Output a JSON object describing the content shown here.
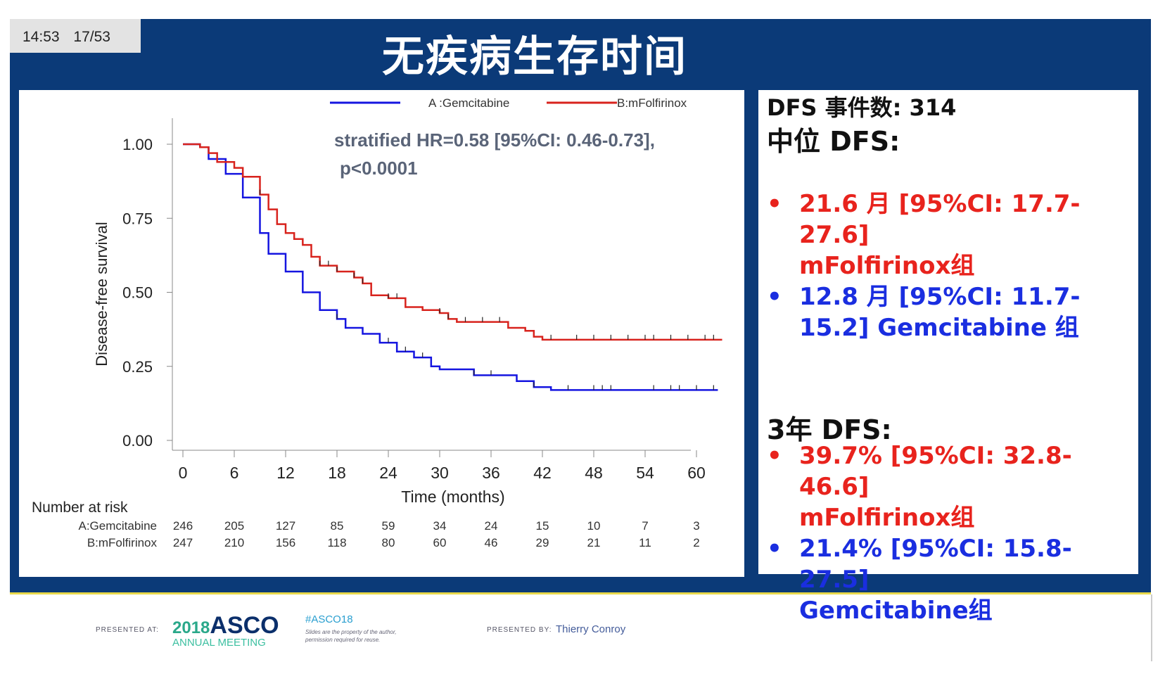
{
  "header": {
    "time": "14:53",
    "slide": "17/53",
    "title": "无疾病生存时间"
  },
  "chart_data": {
    "type": "line",
    "title": "",
    "xlabel": "Time (months)",
    "ylabel": "Disease-free survival",
    "xlim": [
      0,
      63
    ],
    "ylim": [
      0,
      1
    ],
    "xticks": [
      0,
      6,
      12,
      18,
      24,
      30,
      36,
      42,
      48,
      54,
      60
    ],
    "yticks": [
      "0.00",
      "0.25",
      "0.50",
      "0.75",
      "1.00"
    ],
    "annotation": [
      "stratified HR=0.58 [95%CI: 0.46-0.73],",
      "p<0.0001"
    ],
    "legend_position": "top",
    "series": [
      {
        "name": "A :Gemcitabine",
        "color": "#1515e0",
        "points": [
          [
            0,
            1
          ],
          [
            2,
            0.99
          ],
          [
            3,
            0.95
          ],
          [
            5,
            0.9
          ],
          [
            7,
            0.82
          ],
          [
            9,
            0.7
          ],
          [
            10,
            0.63
          ],
          [
            12,
            0.57
          ],
          [
            14,
            0.5
          ],
          [
            16,
            0.44
          ],
          [
            18,
            0.41
          ],
          [
            19,
            0.38
          ],
          [
            21,
            0.36
          ],
          [
            23,
            0.33
          ],
          [
            25,
            0.3
          ],
          [
            27,
            0.28
          ],
          [
            29,
            0.25
          ],
          [
            30,
            0.24
          ],
          [
            33,
            0.24
          ],
          [
            34,
            0.22
          ],
          [
            38,
            0.22
          ],
          [
            39,
            0.2
          ],
          [
            41,
            0.18
          ],
          [
            43,
            0.17
          ],
          [
            62.5,
            0.17
          ]
        ],
        "censored": [
          18,
          24,
          26,
          28,
          34,
          36,
          41,
          45,
          48,
          49,
          50,
          55,
          57,
          58,
          60,
          62
        ]
      },
      {
        "name": "B:mFolfirinox",
        "color": "#d8231d",
        "points": [
          [
            0,
            1
          ],
          [
            2,
            0.99
          ],
          [
            3,
            0.97
          ],
          [
            4,
            0.94
          ],
          [
            6,
            0.92
          ],
          [
            7,
            0.89
          ],
          [
            9,
            0.83
          ],
          [
            10,
            0.78
          ],
          [
            11,
            0.73
          ],
          [
            12,
            0.7
          ],
          [
            13,
            0.68
          ],
          [
            14,
            0.66
          ],
          [
            15,
            0.62
          ],
          [
            16,
            0.59
          ],
          [
            18,
            0.57
          ],
          [
            20,
            0.55
          ],
          [
            21,
            0.53
          ],
          [
            22,
            0.49
          ],
          [
            24,
            0.48
          ],
          [
            26,
            0.45
          ],
          [
            28,
            0.44
          ],
          [
            30,
            0.43
          ],
          [
            31,
            0.41
          ],
          [
            32,
            0.4
          ],
          [
            37,
            0.4
          ],
          [
            38,
            0.38
          ],
          [
            40,
            0.37
          ],
          [
            41,
            0.35
          ],
          [
            42,
            0.34
          ],
          [
            63,
            0.34
          ]
        ],
        "censored": [
          9,
          16,
          17,
          18,
          20,
          21,
          24,
          25,
          30,
          31,
          33,
          35,
          37,
          43,
          46,
          48,
          50,
          52,
          54,
          55,
          57,
          59,
          61,
          62
        ]
      }
    ],
    "risk_table": {
      "label": "Number at risk",
      "rows": [
        {
          "name": "A:Gemcitabine",
          "values": [
            246,
            205,
            127,
            85,
            59,
            34,
            24,
            15,
            10,
            7,
            3
          ]
        },
        {
          "name": "B:mFolfirinox",
          "values": [
            247,
            210,
            156,
            118,
            80,
            60,
            46,
            29,
            21,
            11,
            2
          ]
        }
      ]
    }
  },
  "right": {
    "events": "DFS 事件数: 314",
    "median_heading": "中位 DFS:",
    "median_items": [
      {
        "lines": [
          "21.6 月 [95%CI: 17.7-",
          "27.6]",
          "mFolfirinox组"
        ],
        "color": "red"
      },
      {
        "lines": [
          "12.8 月 [95%CI: 11.7-",
          "15.2] Gemcitabine 组"
        ],
        "color": "blue"
      }
    ],
    "three_year_heading": "3年 DFS:",
    "three_year_items": [
      {
        "lines": [
          "39.7% [95%CI: 32.8-46.6]",
          "mFolfirinox组"
        ],
        "color": "red"
      },
      {
        "lines": [
          "21.4% [95%CI: 15.8-27.5]",
          "Gemcitabine组"
        ],
        "color": "blue"
      }
    ],
    "bullet": "•"
  },
  "footer": {
    "presented_at": "PRESENTED AT:",
    "logo_year": "2018",
    "logo_name": "ASCO",
    "logo_sub": "ANNUAL MEETING",
    "hashtag": "#ASCO18",
    "disclaimer1": "Slides are the property of the author,",
    "disclaimer2": "permission required for reuse.",
    "presented_by": "PRESENTED BY:",
    "presenter": "Thierry Conroy"
  }
}
